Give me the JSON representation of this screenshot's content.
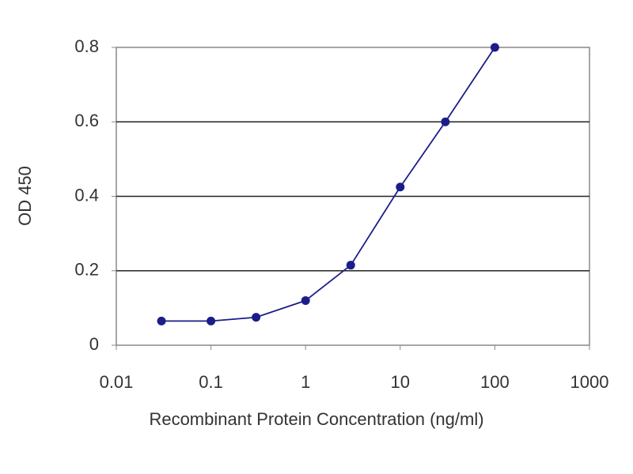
{
  "chart_data": {
    "type": "line",
    "x_label": "Recombinant Protein Concentration (ng/ml)",
    "y_label": "OD 450",
    "x": [
      0.03,
      0.1,
      0.3,
      1,
      3,
      10,
      30,
      100
    ],
    "values": [
      0.065,
      0.065,
      0.075,
      0.12,
      0.215,
      0.425,
      0.6,
      0.8
    ],
    "color": "#1c1c8a",
    "xlim": [
      0.01,
      1000
    ],
    "xticks": [
      0.01,
      0.1,
      1,
      10,
      100,
      1000
    ],
    "log_x": true,
    "ylim": [
      0,
      0.8
    ],
    "yticks": [
      0,
      0.2,
      0.4,
      0.6,
      0.8
    ],
    "grid": true
  }
}
